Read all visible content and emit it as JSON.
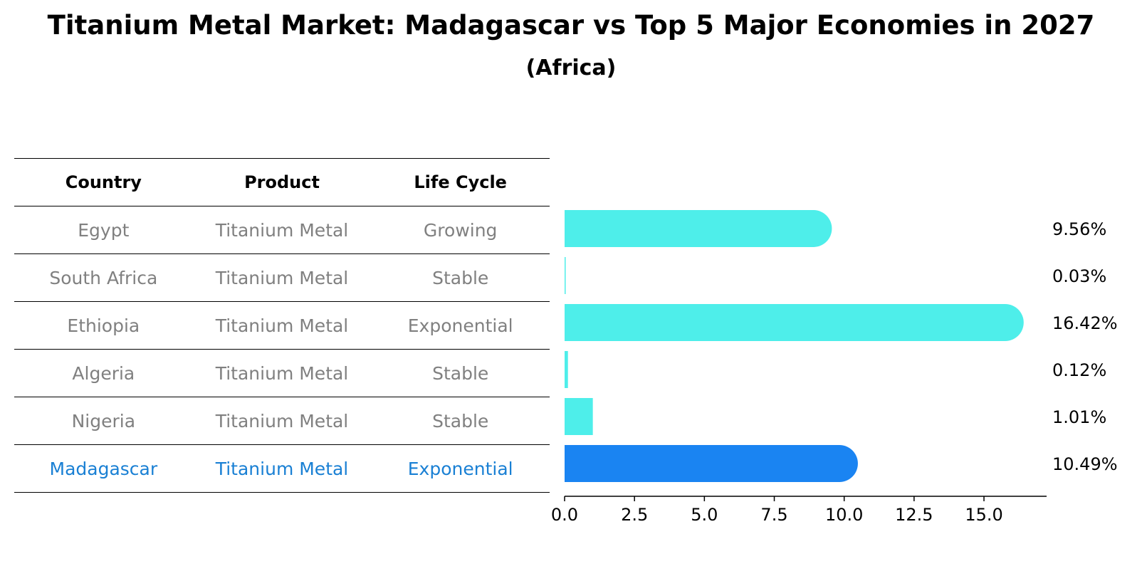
{
  "title": "Titanium Metal Market: Madagascar vs Top 5 Major Economies in 2027",
  "subtitle": "(Africa)",
  "table": {
    "headers": [
      "Country",
      "Product",
      "Life Cycle"
    ],
    "rows": [
      {
        "country": "Egypt",
        "product": "Titanium Metal",
        "life_cycle": "Growing"
      },
      {
        "country": "South Africa",
        "product": "Titanium Metal",
        "life_cycle": "Stable"
      },
      {
        "country": "Ethiopia",
        "product": "Titanium Metal",
        "life_cycle": "Exponential"
      },
      {
        "country": "Algeria",
        "product": "Titanium Metal",
        "life_cycle": "Stable"
      },
      {
        "country": "Nigeria",
        "product": "Titanium Metal",
        "life_cycle": "Stable"
      },
      {
        "country": "Madagascar",
        "product": "Titanium Metal",
        "life_cycle": "Exponential"
      }
    ]
  },
  "colors": {
    "bar": "#4eeeea",
    "highlight_bar": "#1a84f2",
    "highlight_text": "#1a80d4",
    "muted_text": "#808080"
  },
  "chart_data": {
    "type": "bar",
    "orientation": "horizontal",
    "categories": [
      "Egypt",
      "South Africa",
      "Ethiopia",
      "Algeria",
      "Nigeria",
      "Madagascar"
    ],
    "values": [
      9.56,
      0.03,
      16.42,
      0.12,
      1.01,
      10.49
    ],
    "value_labels": [
      "9.56%",
      "0.03%",
      "16.42%",
      "0.12%",
      "1.01%",
      "10.49%"
    ],
    "highlight": "Madagascar",
    "xlim": [
      0,
      17.24
    ],
    "xticks": [
      0.0,
      2.5,
      5.0,
      7.5,
      10.0,
      12.5,
      15.0
    ],
    "xtick_labels": [
      "0.0",
      "2.5",
      "5.0",
      "7.5",
      "10.0",
      "12.5",
      "15.0"
    ]
  }
}
